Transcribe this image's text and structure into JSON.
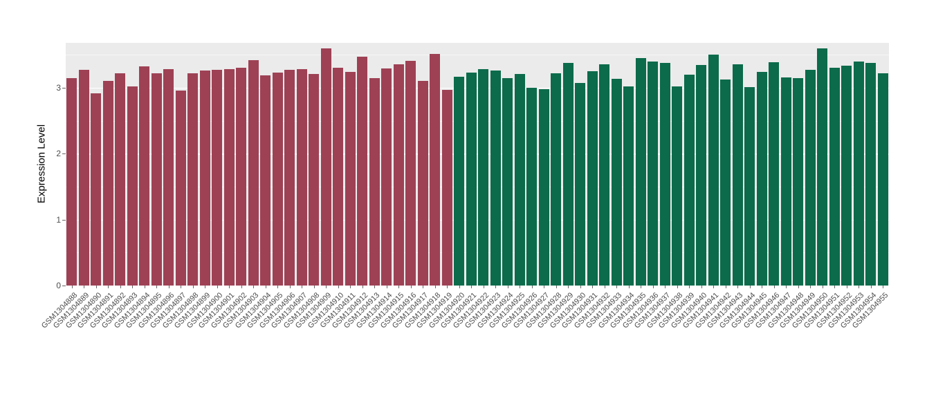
{
  "chart_data": {
    "type": "bar",
    "title": "",
    "xlabel": "",
    "ylabel": "Expression Level",
    "ylim": [
      0,
      3.68
    ],
    "yticks": [
      0,
      1,
      2,
      3
    ],
    "minor_ticks": [
      0.5,
      1.5,
      2.5,
      3.5
    ],
    "grid": true,
    "legend": "none",
    "panel_background": "#EBEBEB",
    "grid_color": "#FFFFFF",
    "axis_text_color": "#4D4D4D",
    "group_split": 32,
    "colors": {
      "group1": "#9E4155",
      "group2": "#0B6B4B"
    },
    "categories": [
      "GSM1304888",
      "GSM1304889",
      "GSM1304890",
      "GSM1304891",
      "GSM1304892",
      "GSM1304893",
      "GSM1304894",
      "GSM1304895",
      "GSM1304896",
      "GSM1304897",
      "GSM1304898",
      "GSM1304899",
      "GSM1304900",
      "GSM1304901",
      "GSM1304902",
      "GSM1304903",
      "GSM1304904",
      "GSM1304905",
      "GSM1304906",
      "GSM1304907",
      "GSM1304908",
      "GSM1304909",
      "GSM1304910",
      "GSM1304911",
      "GSM1304912",
      "GSM1304913",
      "GSM1304914",
      "GSM1304915",
      "GSM1304916",
      "GSM1304917",
      "GSM1304918",
      "GSM1304919",
      "GSM1304920",
      "GSM1304921",
      "GSM1304922",
      "GSM1304923",
      "GSM1304924",
      "GSM1304925",
      "GSM1304926",
      "GSM1304927",
      "GSM1304928",
      "GSM1304929",
      "GSM1304930",
      "GSM1304931",
      "GSM1304932",
      "GSM1304933",
      "GSM1304934",
      "GSM1304935",
      "GSM1304936",
      "GSM1304937",
      "GSM1304938",
      "GSM1304939",
      "GSM1304940",
      "GSM1304941",
      "GSM1304942",
      "GSM1304943",
      "GSM1304944",
      "GSM1304945",
      "GSM1304946",
      "GSM1304947",
      "GSM1304948",
      "GSM1304949",
      "GSM1304950",
      "GSM1304951",
      "GSM1304952",
      "GSM1304953",
      "GSM1304954",
      "GSM1304955"
    ],
    "values": [
      3.15,
      3.27,
      2.91,
      3.1,
      3.22,
      3.02,
      3.32,
      3.22,
      3.28,
      2.96,
      3.22,
      3.26,
      3.27,
      3.28,
      3.3,
      3.42,
      3.19,
      3.23,
      3.27,
      3.28,
      3.21,
      3.6,
      3.3,
      3.24,
      3.47,
      3.15,
      3.29,
      3.35,
      3.41,
      3.1,
      3.51,
      2.97,
      3.17,
      3.23,
      3.28,
      3.26,
      3.15,
      3.21,
      3.0,
      2.98,
      3.22,
      3.38,
      3.07,
      3.25,
      3.35,
      3.14,
      3.02,
      3.45,
      3.4,
      3.38,
      3.02,
      3.2,
      3.34,
      3.5,
      3.12,
      3.35,
      3.01,
      3.24,
      3.39,
      3.16,
      3.15,
      3.27,
      3.6,
      3.3,
      3.33,
      3.4,
      3.38,
      3.22
    ]
  }
}
